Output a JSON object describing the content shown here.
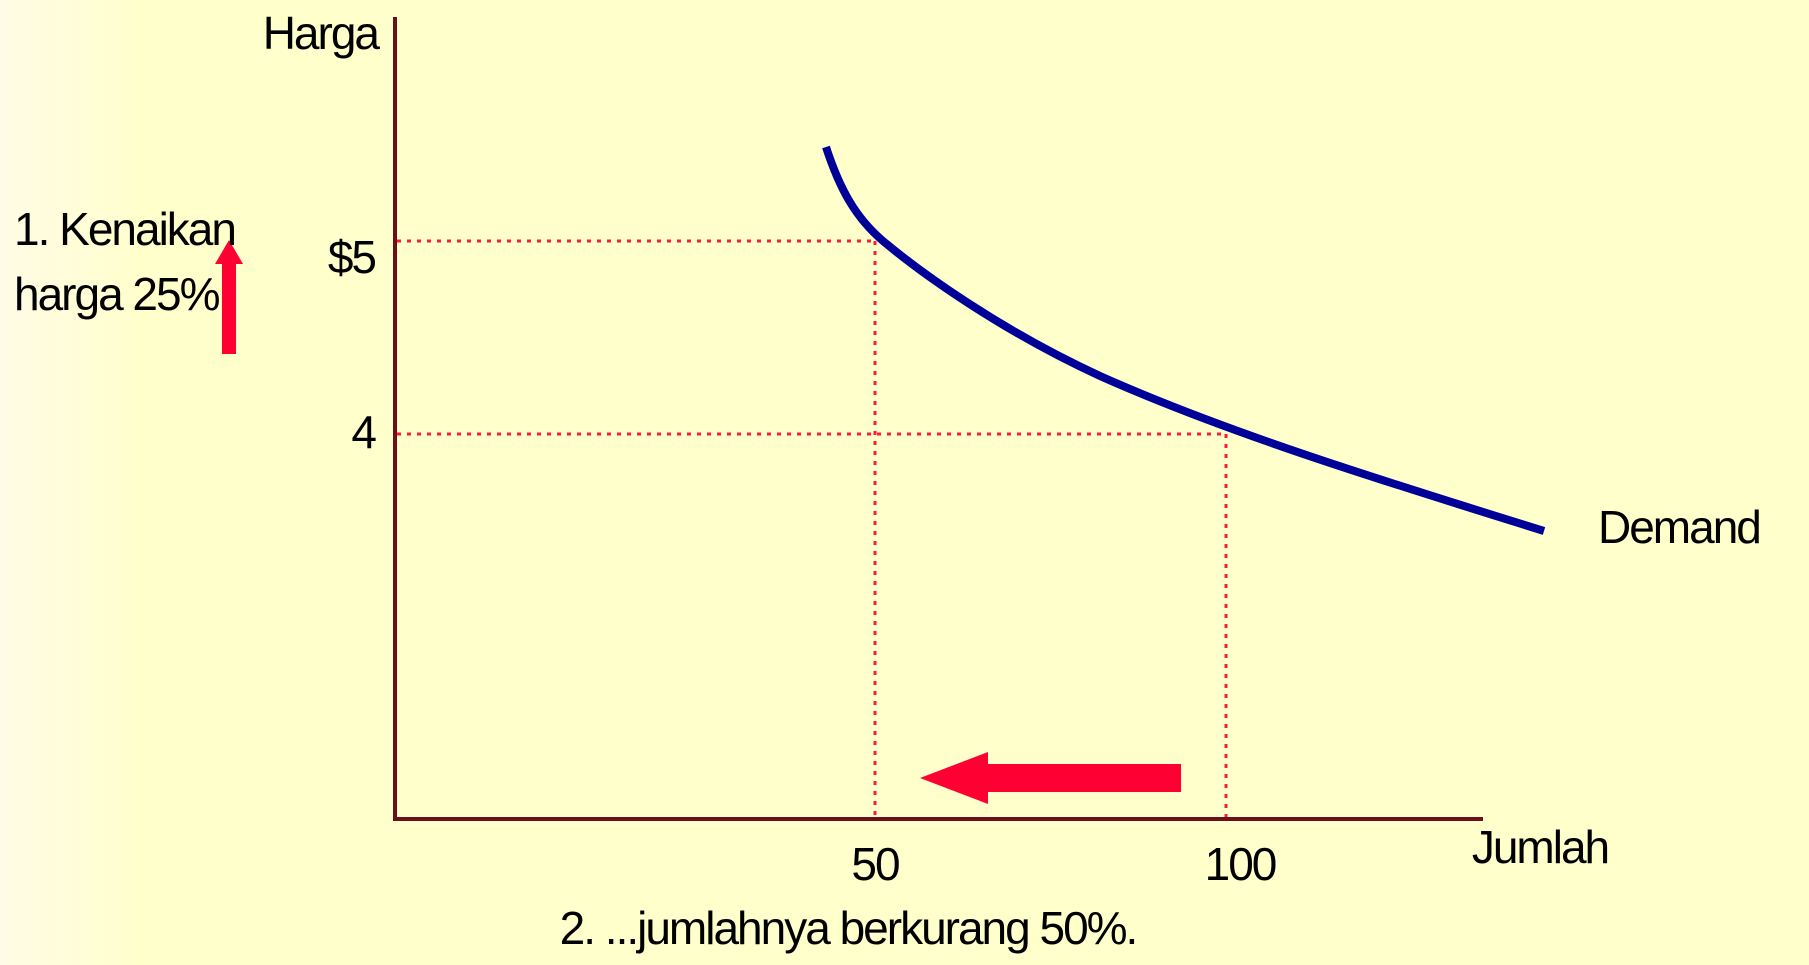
{
  "axes": {
    "y_label": "Harga",
    "x_label": "Jumlah"
  },
  "price_labels": [
    "$5",
    "4"
  ],
  "quantity_labels": [
    "50",
    "100"
  ],
  "curve_label": "Demand",
  "note_price": [
    "1. Kenaikan",
    "harga 25%"
  ],
  "note_quantity": "2. ...jumlahnya berkurang 50%."
}
